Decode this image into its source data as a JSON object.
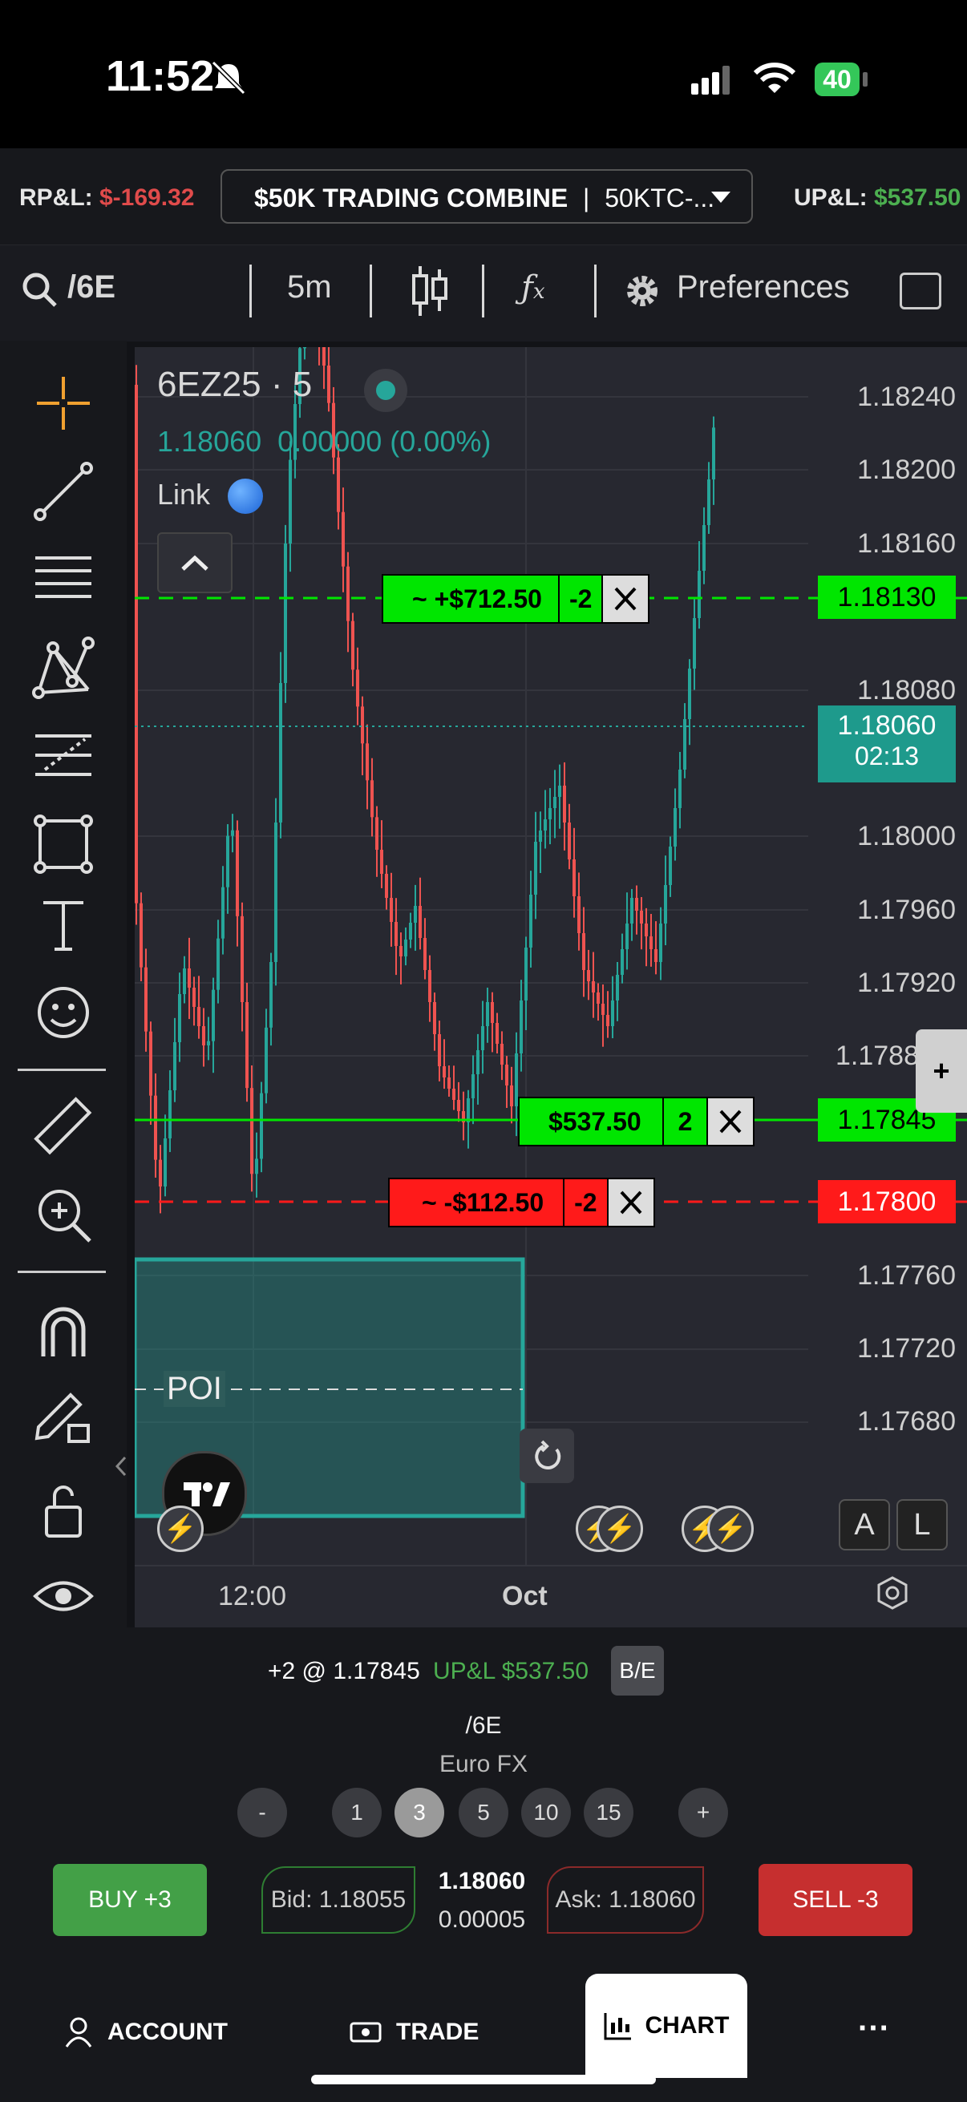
{
  "status": {
    "time": "11:52",
    "battery": "40"
  },
  "account_bar": {
    "rpl_label": "RP&L:",
    "rpl_value": "$-169.32",
    "account_name": "$50K TRADING COMBINE",
    "account_id": "50KTC-...",
    "upl_label": "UP&L:",
    "upl_value": "$537.50"
  },
  "toolbar": {
    "symbol": "/6E",
    "interval": "5m",
    "preferences": "Preferences"
  },
  "chart": {
    "title": "6EZ25 · 5",
    "price": "1.18060",
    "change": "0.00000 (0.00%)",
    "link": "Link",
    "price_labels": [
      "1.18240",
      "1.18200",
      "1.18160",
      "1.18080",
      "1.18000",
      "1.17960",
      "1.17920",
      "1.1788",
      "1.17760",
      "1.17720",
      "1.17680"
    ],
    "tp_order": {
      "label": "~ +$712.50",
      "qty": "-2",
      "price": "1.18130"
    },
    "current_price": {
      "price": "1.18060",
      "timer": "02:13"
    },
    "position": {
      "label": "$537.50",
      "qty": "2",
      "price": "1.17845"
    },
    "sl_order": {
      "label": "~ -$112.50",
      "qty": "-2",
      "price": "1.17800"
    },
    "poi": "POI",
    "time_labels": [
      "12:00",
      "Oct"
    ],
    "btn_a": "A",
    "btn_l": "L",
    "colors": {
      "green": "#00e600",
      "red": "#ff1a1a",
      "teal": "#26a69a",
      "candle_red": "#ef5350"
    }
  },
  "order_panel": {
    "position_text": "+2 @ 1.17845",
    "upl_text": "UP&L $537.50",
    "be_button": "B/E",
    "symbol": "/6E",
    "name": "Euro FX",
    "qty_options": [
      "-",
      "1",
      "3",
      "5",
      "10",
      "15",
      "+"
    ],
    "selected_qty": "3",
    "buy_label": "BUY +3",
    "sell_label": "SELL -3",
    "bid": "Bid: 1.18055",
    "ask": "Ask: 1.18060",
    "last": "1.18060",
    "spread": "0.00005"
  },
  "nav": {
    "account": "ACCOUNT",
    "trade": "TRADE",
    "chart": "CHART",
    "more": "···"
  }
}
